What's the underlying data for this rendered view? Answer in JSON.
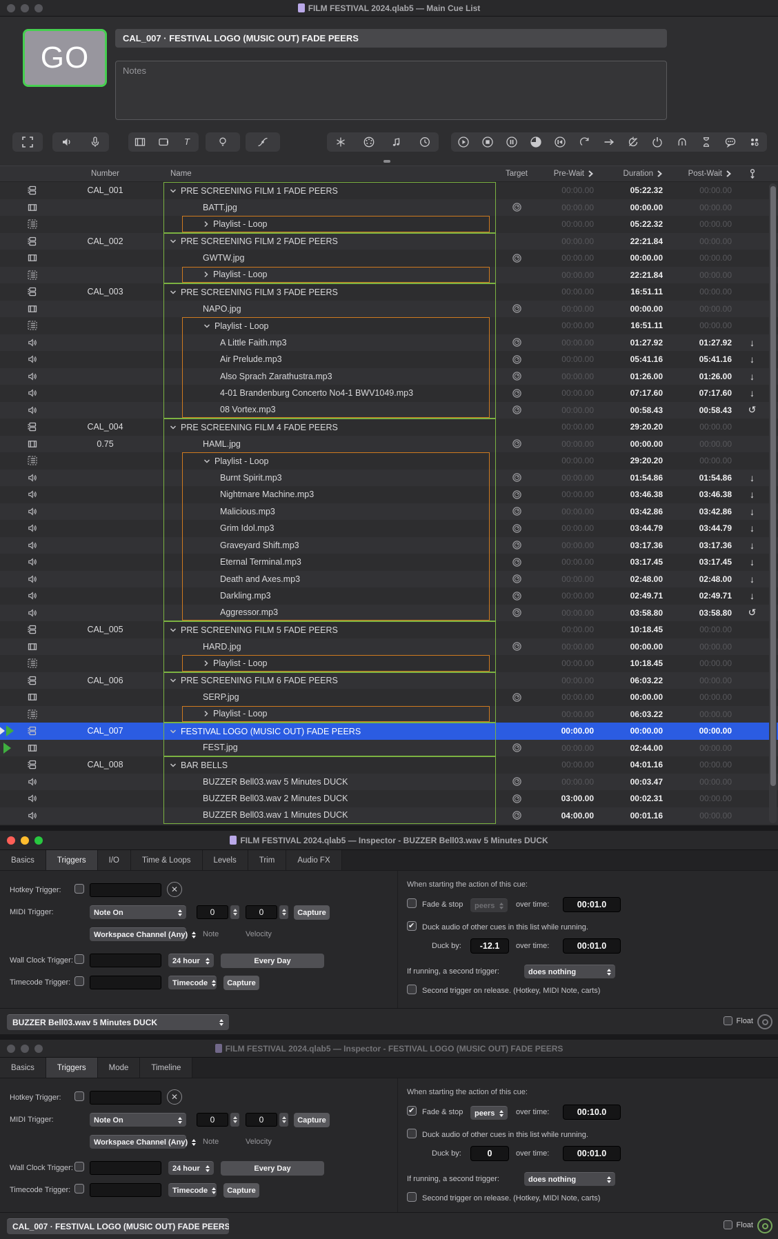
{
  "main_window": {
    "title": "FILM FESTIVAL 2024.qlab5 — Main Cue List",
    "go_button": "GO",
    "current_cue": "CAL_007 · FESTIVAL LOGO (MUSIC OUT)  FADE PEERS",
    "notes_placeholder": "Notes",
    "toolbar_groups": [
      [
        "fullscreen"
      ],
      [
        "speaker",
        "mic"
      ],
      [
        "video",
        "display",
        "text"
      ],
      [
        "bulb"
      ],
      [
        "fade-curve"
      ],
      [
        "osc",
        "midi",
        "music-note",
        "clock"
      ],
      [
        "play",
        "stop",
        "pause",
        "loaded",
        "rewind",
        "redo",
        "arrow-right",
        "preload",
        "power",
        "panic",
        "hourglass",
        "chat",
        "carts"
      ]
    ],
    "table": {
      "columns": {
        "number": "Number",
        "name": "Name",
        "target": "Target",
        "pre_wait": "Pre-Wait",
        "duration": "Duration",
        "post_wait": "Post-Wait"
      },
      "rows": [
        {
          "t": "group",
          "n": "CAL_001",
          "name": "PRE SCREENING  FILM 1  FADE PEERS",
          "ind": 0,
          "ch": "d",
          "g": "top",
          "o": null,
          "tg": false,
          "pre": "00:00.00",
          "preB": 0,
          "dur": "05:22.32",
          "durB": 1,
          "post": "00:00.00",
          "postB": 0,
          "cont": null,
          "sel": 0,
          "ph": null
        },
        {
          "t": "video",
          "n": "",
          "name": "BATT.jpg",
          "ind": 1,
          "ch": null,
          "g": "mid",
          "o": null,
          "tg": true,
          "pre": "00:00.00",
          "preB": 0,
          "dur": "00:00.00",
          "durB": 1,
          "post": "00:00.00",
          "postB": 0,
          "cont": null,
          "sel": 0,
          "ph": null
        },
        {
          "t": "playlist",
          "n": "",
          "name": "Playlist - Loop",
          "ind": 1,
          "ch": "r",
          "g": "bot",
          "o": "single",
          "tg": false,
          "pre": "00:00.00",
          "preB": 0,
          "dur": "05:22.32",
          "durB": 1,
          "post": "00:00.00",
          "postB": 0,
          "cont": null,
          "sel": 0,
          "ph": null
        },
        {
          "t": "group",
          "n": "CAL_002",
          "name": "PRE SCREENING  FILM 2  FADE PEERS",
          "ind": 0,
          "ch": "d",
          "g": "top",
          "o": null,
          "tg": false,
          "pre": "00:00.00",
          "preB": 0,
          "dur": "22:21.84",
          "durB": 1,
          "post": "00:00.00",
          "postB": 0,
          "cont": null,
          "sel": 0,
          "ph": null
        },
        {
          "t": "video",
          "n": "",
          "name": "GWTW.jpg",
          "ind": 1,
          "ch": null,
          "g": "mid",
          "o": null,
          "tg": true,
          "pre": "00:00.00",
          "preB": 0,
          "dur": "00:00.00",
          "durB": 1,
          "post": "00:00.00",
          "postB": 0,
          "cont": null,
          "sel": 0,
          "ph": null
        },
        {
          "t": "playlist",
          "n": "",
          "name": "Playlist - Loop",
          "ind": 1,
          "ch": "r",
          "g": "bot",
          "o": "single",
          "tg": false,
          "pre": "00:00.00",
          "preB": 0,
          "dur": "22:21.84",
          "durB": 1,
          "post": "00:00.00",
          "postB": 0,
          "cont": null,
          "sel": 0,
          "ph": null
        },
        {
          "t": "group",
          "n": "CAL_003",
          "name": "PRE SCREENING  FILM 3  FADE PEERS",
          "ind": 0,
          "ch": "d",
          "g": "top",
          "o": null,
          "tg": false,
          "pre": "00:00.00",
          "preB": 0,
          "dur": "16:51.11",
          "durB": 1,
          "post": "00:00.00",
          "postB": 0,
          "cont": null,
          "sel": 0,
          "ph": null
        },
        {
          "t": "video",
          "n": "",
          "name": "NAPO.jpg",
          "ind": 1,
          "ch": null,
          "g": "mid",
          "o": null,
          "tg": true,
          "pre": "00:00.00",
          "preB": 0,
          "dur": "00:00.00",
          "durB": 1,
          "post": "00:00.00",
          "postB": 0,
          "cont": null,
          "sel": 0,
          "ph": null
        },
        {
          "t": "playlist",
          "n": "",
          "name": "Playlist - Loop",
          "ind": 1,
          "ch": "d",
          "g": "mid",
          "o": "top",
          "tg": false,
          "pre": "00:00.00",
          "preB": 0,
          "dur": "16:51.11",
          "durB": 1,
          "post": "00:00.00",
          "postB": 0,
          "cont": null,
          "sel": 0,
          "ph": null
        },
        {
          "t": "audio",
          "n": "",
          "name": "A Little Faith.mp3",
          "ind": 2,
          "ch": null,
          "g": "mid",
          "o": "mid",
          "tg": true,
          "pre": "00:00.00",
          "preB": 0,
          "dur": "01:27.92",
          "durB": 1,
          "post": "01:27.92",
          "postB": 1,
          "cont": "down",
          "sel": 0,
          "ph": null
        },
        {
          "t": "audio",
          "n": "",
          "name": "Air Prelude.mp3",
          "ind": 2,
          "ch": null,
          "g": "mid",
          "o": "mid",
          "tg": true,
          "pre": "00:00.00",
          "preB": 0,
          "dur": "05:41.16",
          "durB": 1,
          "post": "05:41.16",
          "postB": 1,
          "cont": "down",
          "sel": 0,
          "ph": null
        },
        {
          "t": "audio",
          "n": "",
          "name": "Also Sprach Zarathustra.mp3",
          "ind": 2,
          "ch": null,
          "g": "mid",
          "o": "mid",
          "tg": true,
          "pre": "00:00.00",
          "preB": 0,
          "dur": "01:26.00",
          "durB": 1,
          "post": "01:26.00",
          "postB": 1,
          "cont": "down",
          "sel": 0,
          "ph": null
        },
        {
          "t": "audio",
          "n": "",
          "name": "4-01 Brandenburg Concerto No4-1 BWV1049.mp3",
          "ind": 2,
          "ch": null,
          "g": "mid",
          "o": "mid",
          "tg": true,
          "pre": "00:00.00",
          "preB": 0,
          "dur": "07:17.60",
          "durB": 1,
          "post": "07:17.60",
          "postB": 1,
          "cont": "down",
          "sel": 0,
          "ph": null
        },
        {
          "t": "audio",
          "n": "",
          "name": "08 Vortex.mp3",
          "ind": 2,
          "ch": null,
          "g": "bot",
          "o": "bot",
          "tg": true,
          "pre": "00:00.00",
          "preB": 0,
          "dur": "00:58.43",
          "durB": 1,
          "post": "00:58.43",
          "postB": 1,
          "cont": "loop",
          "sel": 0,
          "ph": null
        },
        {
          "t": "group",
          "n": "CAL_004",
          "name": "PRE SCREENING  FILM 4  FADE PEERS",
          "ind": 0,
          "ch": "d",
          "g": "top",
          "o": null,
          "tg": false,
          "pre": "00:00.00",
          "preB": 0,
          "dur": "29:20.20",
          "durB": 1,
          "post": "00:00.00",
          "postB": 0,
          "cont": null,
          "sel": 0,
          "ph": null
        },
        {
          "t": "video",
          "n": "0.75",
          "name": "HAML.jpg",
          "ind": 1,
          "ch": null,
          "g": "mid",
          "o": null,
          "tg": true,
          "pre": "00:00.00",
          "preB": 0,
          "dur": "00:00.00",
          "durB": 1,
          "post": "00:00.00",
          "postB": 0,
          "cont": null,
          "sel": 0,
          "ph": null
        },
        {
          "t": "playlist",
          "n": "",
          "name": "Playlist - Loop",
          "ind": 1,
          "ch": "d",
          "g": "mid",
          "o": "top",
          "tg": false,
          "pre": "00:00.00",
          "preB": 0,
          "dur": "29:20.20",
          "durB": 1,
          "post": "00:00.00",
          "postB": 0,
          "cont": null,
          "sel": 0,
          "ph": null
        },
        {
          "t": "audio",
          "n": "",
          "name": "Burnt Spirit.mp3",
          "ind": 2,
          "ch": null,
          "g": "mid",
          "o": "mid",
          "tg": true,
          "pre": "00:00.00",
          "preB": 0,
          "dur": "01:54.86",
          "durB": 1,
          "post": "01:54.86",
          "postB": 1,
          "cont": "down",
          "sel": 0,
          "ph": null
        },
        {
          "t": "audio",
          "n": "",
          "name": "Nightmare Machine.mp3",
          "ind": 2,
          "ch": null,
          "g": "mid",
          "o": "mid",
          "tg": true,
          "pre": "00:00.00",
          "preB": 0,
          "dur": "03:46.38",
          "durB": 1,
          "post": "03:46.38",
          "postB": 1,
          "cont": "down",
          "sel": 0,
          "ph": null
        },
        {
          "t": "audio",
          "n": "",
          "name": "Malicious.mp3",
          "ind": 2,
          "ch": null,
          "g": "mid",
          "o": "mid",
          "tg": true,
          "pre": "00:00.00",
          "preB": 0,
          "dur": "03:42.86",
          "durB": 1,
          "post": "03:42.86",
          "postB": 1,
          "cont": "down",
          "sel": 0,
          "ph": null
        },
        {
          "t": "audio",
          "n": "",
          "name": "Grim Idol.mp3",
          "ind": 2,
          "ch": null,
          "g": "mid",
          "o": "mid",
          "tg": true,
          "pre": "00:00.00",
          "preB": 0,
          "dur": "03:44.79",
          "durB": 1,
          "post": "03:44.79",
          "postB": 1,
          "cont": "down",
          "sel": 0,
          "ph": null
        },
        {
          "t": "audio",
          "n": "",
          "name": "Graveyard Shift.mp3",
          "ind": 2,
          "ch": null,
          "g": "mid",
          "o": "mid",
          "tg": true,
          "pre": "00:00.00",
          "preB": 0,
          "dur": "03:17.36",
          "durB": 1,
          "post": "03:17.36",
          "postB": 1,
          "cont": "down",
          "sel": 0,
          "ph": null
        },
        {
          "t": "audio",
          "n": "",
          "name": "Eternal Terminal.mp3",
          "ind": 2,
          "ch": null,
          "g": "mid",
          "o": "mid",
          "tg": true,
          "pre": "00:00.00",
          "preB": 0,
          "dur": "03:17.45",
          "durB": 1,
          "post": "03:17.45",
          "postB": 1,
          "cont": "down",
          "sel": 0,
          "ph": null
        },
        {
          "t": "audio",
          "n": "",
          "name": "Death and Axes.mp3",
          "ind": 2,
          "ch": null,
          "g": "mid",
          "o": "mid",
          "tg": true,
          "pre": "00:00.00",
          "preB": 0,
          "dur": "02:48.00",
          "durB": 1,
          "post": "02:48.00",
          "postB": 1,
          "cont": "down",
          "sel": 0,
          "ph": null
        },
        {
          "t": "audio",
          "n": "",
          "name": "Darkling.mp3",
          "ind": 2,
          "ch": null,
          "g": "mid",
          "o": "mid",
          "tg": true,
          "pre": "00:00.00",
          "preB": 0,
          "dur": "02:49.71",
          "durB": 1,
          "post": "02:49.71",
          "postB": 1,
          "cont": "down",
          "sel": 0,
          "ph": null
        },
        {
          "t": "audio",
          "n": "",
          "name": "Aggressor.mp3",
          "ind": 2,
          "ch": null,
          "g": "bot",
          "o": "bot",
          "tg": true,
          "pre": "00:00.00",
          "preB": 0,
          "dur": "03:58.80",
          "durB": 1,
          "post": "03:58.80",
          "postB": 1,
          "cont": "loop",
          "sel": 0,
          "ph": null
        },
        {
          "t": "group",
          "n": "CAL_005",
          "name": "PRE SCREENING  FILM 5  FADE PEERS",
          "ind": 0,
          "ch": "d",
          "g": "top",
          "o": null,
          "tg": false,
          "pre": "00:00.00",
          "preB": 0,
          "dur": "10:18.45",
          "durB": 1,
          "post": "00:00.00",
          "postB": 0,
          "cont": null,
          "sel": 0,
          "ph": null
        },
        {
          "t": "video",
          "n": "",
          "name": "HARD.jpg",
          "ind": 1,
          "ch": null,
          "g": "mid",
          "o": null,
          "tg": true,
          "pre": "00:00.00",
          "preB": 0,
          "dur": "00:00.00",
          "durB": 1,
          "post": "00:00.00",
          "postB": 0,
          "cont": null,
          "sel": 0,
          "ph": null
        },
        {
          "t": "playlist",
          "n": "",
          "name": "Playlist - Loop",
          "ind": 1,
          "ch": "r",
          "g": "bot",
          "o": "single",
          "tg": false,
          "pre": "00:00.00",
          "preB": 0,
          "dur": "10:18.45",
          "durB": 1,
          "post": "00:00.00",
          "postB": 0,
          "cont": null,
          "sel": 0,
          "ph": null
        },
        {
          "t": "group",
          "n": "CAL_006",
          "name": "PRE SCREENING  FILM 6  FADE PEERS",
          "ind": 0,
          "ch": "d",
          "g": "top",
          "o": null,
          "tg": false,
          "pre": "00:00.00",
          "preB": 0,
          "dur": "06:03.22",
          "durB": 1,
          "post": "00:00.00",
          "postB": 0,
          "cont": null,
          "sel": 0,
          "ph": null
        },
        {
          "t": "video",
          "n": "",
          "name": "SERP.jpg",
          "ind": 1,
          "ch": null,
          "g": "mid",
          "o": null,
          "tg": true,
          "pre": "00:00.00",
          "preB": 0,
          "dur": "00:00.00",
          "durB": 1,
          "post": "00:00.00",
          "postB": 0,
          "cont": null,
          "sel": 0,
          "ph": null
        },
        {
          "t": "playlist",
          "n": "",
          "name": "Playlist - Loop",
          "ind": 1,
          "ch": "r",
          "g": "bot",
          "o": "single",
          "tg": false,
          "pre": "00:00.00",
          "preB": 0,
          "dur": "06:03.22",
          "durB": 1,
          "post": "00:00.00",
          "postB": 0,
          "cont": null,
          "sel": 0,
          "ph": null
        },
        {
          "t": "group",
          "n": "CAL_007",
          "name": "FESTIVAL LOGO (MUSIC OUT)  FADE PEERS",
          "ind": 0,
          "ch": "d",
          "g": "top",
          "o": null,
          "tg": false,
          "pre": "00:00.00",
          "preB": 1,
          "dur": "00:00.00",
          "durB": 1,
          "post": "00:00.00",
          "postB": 1,
          "cont": null,
          "sel": 1,
          "ph": "both"
        },
        {
          "t": "video",
          "n": "",
          "name": "FEST.jpg",
          "ind": 1,
          "ch": null,
          "g": "bot",
          "o": null,
          "tg": true,
          "pre": "00:00.00",
          "preB": 0,
          "dur": "02:44.00",
          "durB": 1,
          "post": "00:00.00",
          "postB": 0,
          "cont": null,
          "sel": 0,
          "ph": "green"
        },
        {
          "t": "group",
          "n": "CAL_008",
          "name": "BAR BELLS",
          "ind": 0,
          "ch": "d",
          "g": "top",
          "o": null,
          "tg": false,
          "pre": "00:00.00",
          "preB": 0,
          "dur": "04:01.16",
          "durB": 1,
          "post": "00:00.00",
          "postB": 0,
          "cont": null,
          "sel": 0,
          "ph": null
        },
        {
          "t": "audio",
          "n": "",
          "name": "BUZZER Bell03.wav 5 Minutes DUCK",
          "ind": 1,
          "ch": null,
          "g": "mid",
          "o": null,
          "tg": true,
          "pre": "00:00.00",
          "preB": 0,
          "dur": "00:03.47",
          "durB": 1,
          "post": "00:00.00",
          "postB": 0,
          "cont": null,
          "sel": 0,
          "ph": null
        },
        {
          "t": "audio",
          "n": "",
          "name": "BUZZER Bell03.wav 2 Minutes DUCK",
          "ind": 1,
          "ch": null,
          "g": "mid",
          "o": null,
          "tg": true,
          "pre": "03:00.00",
          "preB": 1,
          "dur": "00:02.31",
          "durB": 1,
          "post": "00:00.00",
          "postB": 0,
          "cont": null,
          "sel": 0,
          "ph": null
        },
        {
          "t": "audio",
          "n": "",
          "name": "BUZZER Bell03.wav 1 Minutes DUCK",
          "ind": 1,
          "ch": null,
          "g": "bot",
          "o": null,
          "tg": true,
          "pre": "04:00.00",
          "preB": 1,
          "dur": "00:01.16",
          "durB": 1,
          "post": "00:00.00",
          "postB": 0,
          "cont": null,
          "sel": 0,
          "ph": null
        }
      ]
    }
  },
  "inspector_labels": {
    "hotkey": "Hotkey Trigger:",
    "midi": "MIDI Trigger:",
    "midi_type": "Note On",
    "note": "Note",
    "velocity": "Velocity",
    "capture": "Capture",
    "channel": "Workspace Channel (Any)",
    "wall": "Wall Clock Trigger:",
    "wall_format": "24 hour",
    "wall_days": "Every Day",
    "timecode": "Timecode Trigger:",
    "timecode_type": "Timecode",
    "when_heading": "When starting the action of this cue:",
    "fade_stop": "Fade & stop",
    "peers": "peers",
    "over_time": "over time:",
    "duck_audio": "Duck audio of other cues in this list while running.",
    "duck_by": "Duck by:",
    "second_trigger": "If running, a second trigger:",
    "second_action": "does nothing",
    "release_note": "Second trigger on release. (Hotkey, MIDI Note, carts)",
    "float": "Float"
  },
  "inspector1": {
    "title": "FILM FESTIVAL 2024.qlab5 — Inspector - BUZZER Bell03.wav 5 Minutes DUCK",
    "tabs": [
      "Basics",
      "Triggers",
      "I/O",
      "Time & Loops",
      "Levels",
      "Trim",
      "Audio FX"
    ],
    "active_tab": "Triggers",
    "midi_note": "0",
    "midi_velocity": "0",
    "fade_stop_checked": false,
    "peers_disabled": true,
    "fade_time": "00:01.0",
    "duck_checked": true,
    "duck_value": "-12.1",
    "duck_time": "00:01.0",
    "second_action_value": "does nothing",
    "release_checked": false,
    "cue_selector": "BUZZER Bell03.wav 5 Minutes DUCK"
  },
  "inspector2": {
    "title": "FILM FESTIVAL 2024.qlab5 — Inspector - FESTIVAL LOGO (MUSIC OUT)  FADE PEERS",
    "tabs": [
      "Basics",
      "Triggers",
      "Mode",
      "Timeline"
    ],
    "active_tab": "Triggers",
    "midi_note": "0",
    "midi_velocity": "0",
    "fade_stop_checked": true,
    "peers_disabled": false,
    "fade_time": "00:10.0",
    "duck_checked": false,
    "duck_value": "0",
    "duck_time": "00:01.0",
    "second_action_value": "does nothing",
    "release_checked": false,
    "cue_selector": "CAL_007 · FESTIVAL LOGO (MUSIC OUT)  FADE PEERS"
  },
  "colors": {
    "accent_blue": "#2b5ce2",
    "group_green": "#7cb342",
    "playlist_orange": "#cf7a1f",
    "go_border_green": "#46cf50"
  }
}
